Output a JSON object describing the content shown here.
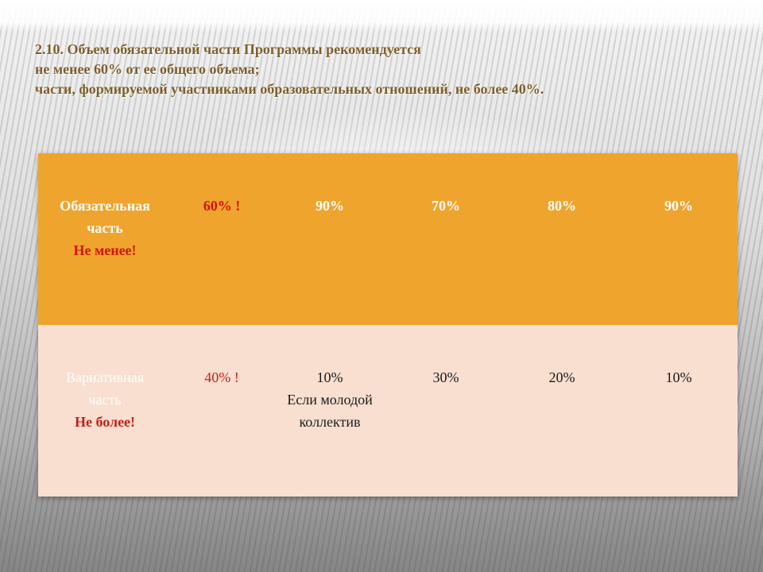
{
  "heading": {
    "line1": "2.10. Объем обязательной части Программы рекомендуется",
    "line2": "не менее 60% от ее общего объема;",
    "line3": "части, формируемой участниками образовательных отношений, не более 40%."
  },
  "table": {
    "rows": [
      {
        "label_line1": "Обязательная",
        "label_line2": "часть",
        "note": "Не менее!",
        "values": [
          "60% !",
          "90%",
          "70%",
          "80%",
          "90%"
        ],
        "row_color": "#efa42e"
      },
      {
        "label_line1": "Вариативная",
        "label_line2": "часть",
        "note": "Не более!",
        "values": [
          "40% !",
          "10%",
          "30%",
          "20%",
          "10%"
        ],
        "extra_line1": "Если молодой",
        "extra_line2": "коллектив",
        "row_color": "#f8dfd0"
      }
    ]
  },
  "colors": {
    "heading_text": "#7d5f2b",
    "warning_red": "#d4130e"
  }
}
